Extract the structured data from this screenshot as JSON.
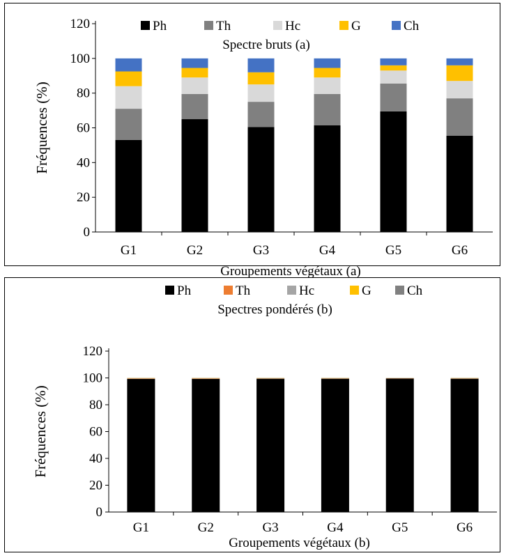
{
  "chart_data": [
    {
      "type": "bar",
      "stacked": true,
      "title": "Spectre bruts (a)",
      "xlabel": "Groupements végétaux (a)",
      "ylabel": "Fréquences (%)",
      "ylim": [
        0,
        120
      ],
      "yticks": [
        "0",
        "20",
        "40",
        "60",
        "80",
        "100",
        "120"
      ],
      "categories": [
        "G1",
        "G2",
        "G3",
        "G4",
        "G5",
        "G6"
      ],
      "legend_position": "top",
      "series": [
        {
          "name": "Ph",
          "color": "#000000",
          "values": [
            53,
            65,
            60.5,
            61.5,
            69.5,
            55.5
          ]
        },
        {
          "name": "Th",
          "color": "#808080",
          "values": [
            18,
            14.5,
            14.5,
            18,
            16,
            21.5
          ]
        },
        {
          "name": "Hc",
          "color": "#d9d9d9",
          "values": [
            13,
            9.5,
            10,
            9.5,
            7.5,
            10
          ]
        },
        {
          "name": "G",
          "color": "#ffc000",
          "values": [
            8.5,
            5.5,
            7,
            5.5,
            3,
            9
          ]
        },
        {
          "name": "Ch",
          "color": "#4472c4",
          "values": [
            7.5,
            5.5,
            8,
            5.5,
            4,
            4
          ]
        }
      ]
    },
    {
      "type": "bar",
      "stacked": true,
      "title": "Spectres pondérés (b)",
      "xlabel": "Groupements végétaux (b)",
      "ylabel": "Fréquences (%)",
      "ylim": [
        0,
        120
      ],
      "yticks": [
        "0",
        "20",
        "40",
        "60",
        "80",
        "100",
        "120"
      ],
      "categories": [
        "G1",
        "G2",
        "G3",
        "G4",
        "G5",
        "G6"
      ],
      "legend_position": "top",
      "series": [
        {
          "name": "Ph",
          "color": "#000000",
          "values": [
            99.3,
            99.3,
            99.4,
            99.4,
            99.5,
            99.4
          ]
        },
        {
          "name": "Th",
          "color": "#ed7d31",
          "values": [
            0.3,
            0.3,
            0.2,
            0.2,
            0.2,
            0.2
          ]
        },
        {
          "name": "Hc",
          "color": "#a5a5a5",
          "values": [
            0.1,
            0.1,
            0.1,
            0.1,
            0.1,
            0.1
          ]
        },
        {
          "name": "G",
          "color": "#ffc000",
          "values": [
            0.2,
            0.2,
            0.2,
            0.2,
            0.1,
            0.2
          ]
        },
        {
          "name": "Ch",
          "color": "#808080",
          "values": [
            0.1,
            0.1,
            0.1,
            0.1,
            0.1,
            0.1
          ]
        }
      ]
    }
  ]
}
